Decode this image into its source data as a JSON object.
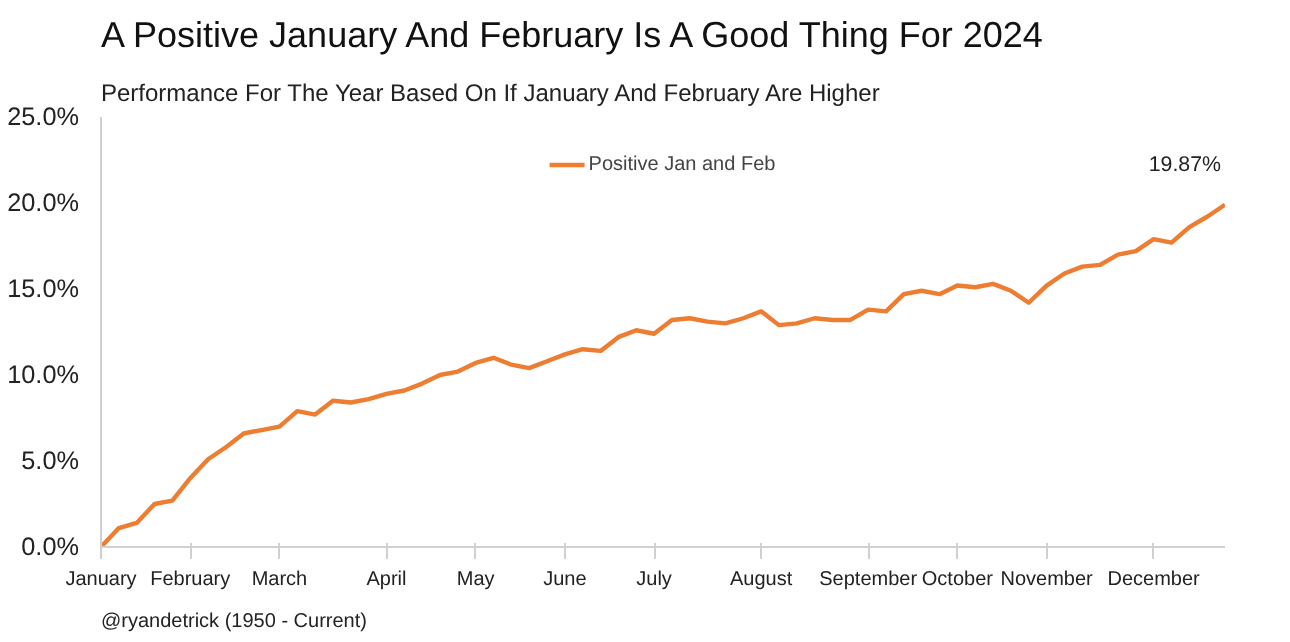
{
  "chart_data": {
    "type": "line",
    "title": "A Positive January And February Is A Good Thing For 2024",
    "subtitle": "Performance For The Year Based On If January And February Are Higher",
    "categories": [
      "January",
      null,
      null,
      null,
      null,
      "February",
      null,
      null,
      null,
      null,
      "March",
      null,
      null,
      null,
      null,
      null,
      "April",
      null,
      null,
      null,
      null,
      "May",
      null,
      null,
      null,
      null,
      "June",
      null,
      null,
      null,
      null,
      "July",
      null,
      null,
      null,
      null,
      null,
      "August",
      null,
      null,
      null,
      null,
      null,
      "September",
      null,
      null,
      null,
      null,
      "October",
      null,
      null,
      null,
      null,
      "November",
      null,
      null,
      null,
      null,
      null,
      "December",
      null,
      null,
      null,
      null
    ],
    "series": [
      {
        "name": "Positive Jan and Feb",
        "color": "#ed7d31",
        "values": [
          0,
          1.1,
          1.4,
          2.5,
          2.7,
          4.0,
          5.1,
          5.8,
          6.6,
          6.8,
          7.0,
          7.9,
          7.7,
          8.5,
          8.4,
          8.6,
          8.9,
          9.1,
          9.5,
          10.0,
          10.2,
          10.7,
          11.0,
          10.6,
          10.4,
          10.8,
          11.2,
          11.5,
          11.4,
          12.2,
          12.6,
          12.4,
          13.2,
          13.3,
          13.1,
          13.0,
          13.3,
          13.7,
          12.9,
          13.0,
          13.3,
          13.2,
          13.2,
          13.8,
          13.7,
          14.7,
          14.9,
          14.7,
          15.2,
          15.1,
          15.3,
          14.9,
          14.2,
          15.2,
          15.9,
          16.3,
          16.4,
          17.0,
          17.2,
          17.9,
          17.7,
          18.6,
          19.2,
          19.9
        ]
      }
    ],
    "ylim": [
      0,
      25
    ],
    "yticks": [
      {
        "value": 0,
        "label": "0.0%"
      },
      {
        "value": 5,
        "label": "5.0%"
      },
      {
        "value": 10,
        "label": "10.0%"
      },
      {
        "value": 15,
        "label": "15.0%"
      },
      {
        "value": 20,
        "label": "20.0%"
      },
      {
        "value": 25,
        "label": "25.0%"
      }
    ],
    "grid": false,
    "legend": "top",
    "line_style": "solid",
    "marker": "none",
    "annotations": [
      "19.87%",
      "@ryandetrick      (1950 - Current)"
    ]
  }
}
